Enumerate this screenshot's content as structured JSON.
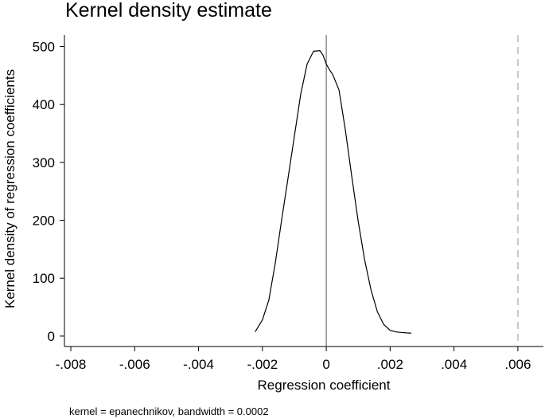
{
  "chart_data": {
    "type": "line",
    "title": "Kernel density estimate",
    "xlabel": "Regression coefficient",
    "ylabel": "Kernel density of regression coefficients",
    "note": "kernel = epanechnikov, bandwidth = 0.0002",
    "xlim": [
      -0.0082,
      0.0068
    ],
    "ylim": [
      -18,
      520
    ],
    "x_ticks": [
      {
        "value": -0.008,
        "label": "-.008"
      },
      {
        "value": -0.006,
        "label": "-.006"
      },
      {
        "value": -0.004,
        "label": "-.004"
      },
      {
        "value": -0.002,
        "label": "-.002"
      },
      {
        "value": 0,
        "label": "0"
      },
      {
        "value": 0.002,
        "label": ".002"
      },
      {
        "value": 0.004,
        "label": ".004"
      },
      {
        "value": 0.006,
        "label": ".006"
      }
    ],
    "y_ticks": [
      {
        "value": 0,
        "label": "0"
      },
      {
        "value": 100,
        "label": "100"
      },
      {
        "value": 200,
        "label": "200"
      },
      {
        "value": 300,
        "label": "300"
      },
      {
        "value": 400,
        "label": "400"
      },
      {
        "value": 500,
        "label": "500"
      }
    ],
    "reference_lines": [
      {
        "axis": "x",
        "value": 0,
        "style": "solid",
        "color": "#555555"
      },
      {
        "axis": "x",
        "value": 0.006,
        "style": "dashed",
        "color": "#c8c8c8"
      }
    ],
    "grid": false,
    "series": [
      {
        "color": "#000000",
        "x": [
          -0.00222,
          -0.002,
          -0.0018,
          -0.0016,
          -0.0014,
          -0.0012,
          -0.001,
          -0.0008,
          -0.0006,
          -0.0004,
          -0.0002,
          -0.0001,
          0.0,
          0.0001,
          0.0002,
          0.0004,
          0.0006,
          0.0008,
          0.001,
          0.0012,
          0.0014,
          0.0016,
          0.0018,
          0.002,
          0.0022,
          0.0024,
          0.00265
        ],
        "y": [
          8,
          28,
          62,
          125,
          200,
          272,
          345,
          418,
          470,
          492,
          493,
          485,
          470,
          460,
          452,
          425,
          355,
          275,
          198,
          132,
          80,
          42,
          20,
          10,
          7,
          6,
          5
        ]
      }
    ]
  }
}
